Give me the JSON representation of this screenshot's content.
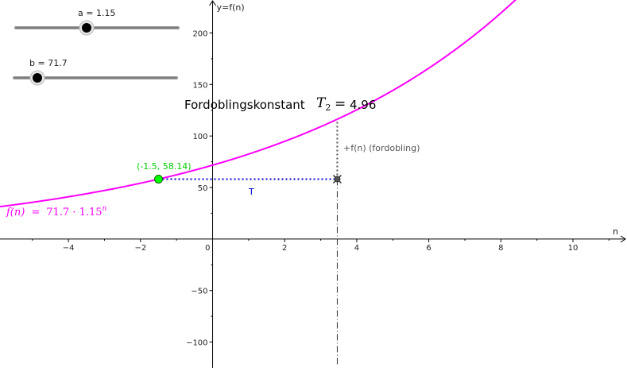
{
  "sliders": [
    {
      "label": "a = 1.15",
      "value": 1.15,
      "min": 0,
      "max": 2.5
    },
    {
      "label": "b = 71.7",
      "value": 71.7,
      "min": 0,
      "max": 500
    }
  ],
  "annotations": {
    "doubling_title": "Fordoblingskonstant",
    "doubling_symbol": "T",
    "doubling_subscript": "2",
    "doubling_equals": "=",
    "doubling_value": "4.96",
    "point_label": "(-1.5, 58.14)",
    "segment_label": "T",
    "vertical_label": "+f(n)  (fordobling)",
    "function_label_lhs": "f(n)",
    "function_label_eq": "=",
    "function_label_rhs": "71.7 · 1.15",
    "function_label_exp": "n"
  },
  "colors": {
    "curve": "#ff00ff",
    "point": "#00ff00",
    "point_label": "#00cc00",
    "segment": "#0000cc",
    "vertical": "#555555",
    "axis": "#000000"
  },
  "chart_data": {
    "type": "line",
    "xlabel": "n",
    "ylabel": "y=f(n)",
    "xlim": [
      -5.9,
      11.5
    ],
    "ylim": [
      -125,
      232
    ],
    "x_ticks": [
      -4,
      -2,
      0,
      2,
      4,
      6,
      8,
      10
    ],
    "x_tick_labels": [
      "−4",
      "−2",
      "0",
      "2",
      "4",
      "6",
      "8",
      "10"
    ],
    "y_ticks": [
      -100,
      -50,
      50,
      100,
      150,
      200
    ],
    "y_tick_labels": [
      "−100",
      "−50",
      "50",
      "100",
      "150",
      "200"
    ],
    "grid": false,
    "function": {
      "b": 71.7,
      "a": 1.15
    },
    "point": {
      "x": -1.5,
      "y": 58.14
    },
    "doubling_point": {
      "x": 3.46,
      "y": 58.14
    },
    "doubled_value": 116.28
  }
}
